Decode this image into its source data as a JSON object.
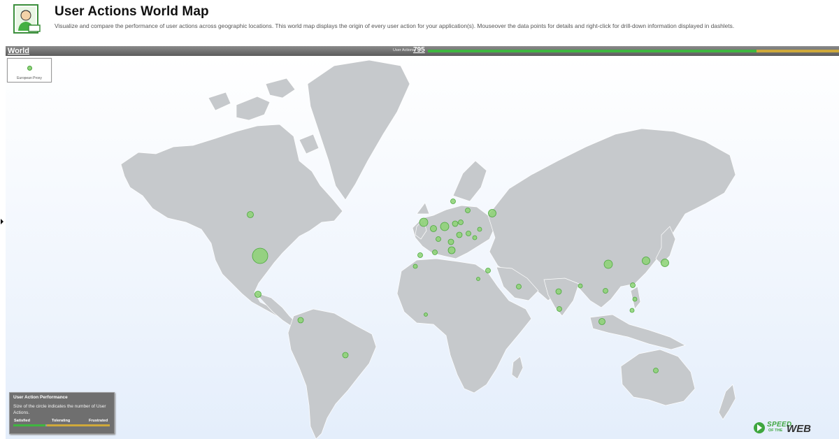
{
  "header": {
    "title": "User Actions World Map",
    "description": "Visualize and compare the performance of user actions across geographic locations. This world map displays the origin of every user action for your application(s). Mouseover the data points for details and right-click for drill-down information displayed in dashlets."
  },
  "map_bar": {
    "region": "World",
    "user_actions_label": "User Actions",
    "user_actions_count": "795",
    "satisfied_fraction": 0.8,
    "tolerating_fraction": 0.2
  },
  "proxy": {
    "label": "European Proxy"
  },
  "legend": {
    "title": "User Action Performance",
    "description": "Size of the circle indicates the number of User Actions.",
    "satisfied": "Satisfied",
    "tolerating": "Tolerating",
    "frustrated": "Frustrated"
  },
  "brand": {
    "speed": "SPEED",
    "of_the": "OF THE",
    "web": "WEB"
  },
  "colors": {
    "satisfied": "#3fb640",
    "tolerating": "#cfa93a",
    "land": "#c6c9cc",
    "ocean": "#eef4fc"
  },
  "icons": [
    "user-report-icon",
    "speed-of-the-web-logo",
    "expand-arrow-icon"
  ]
}
